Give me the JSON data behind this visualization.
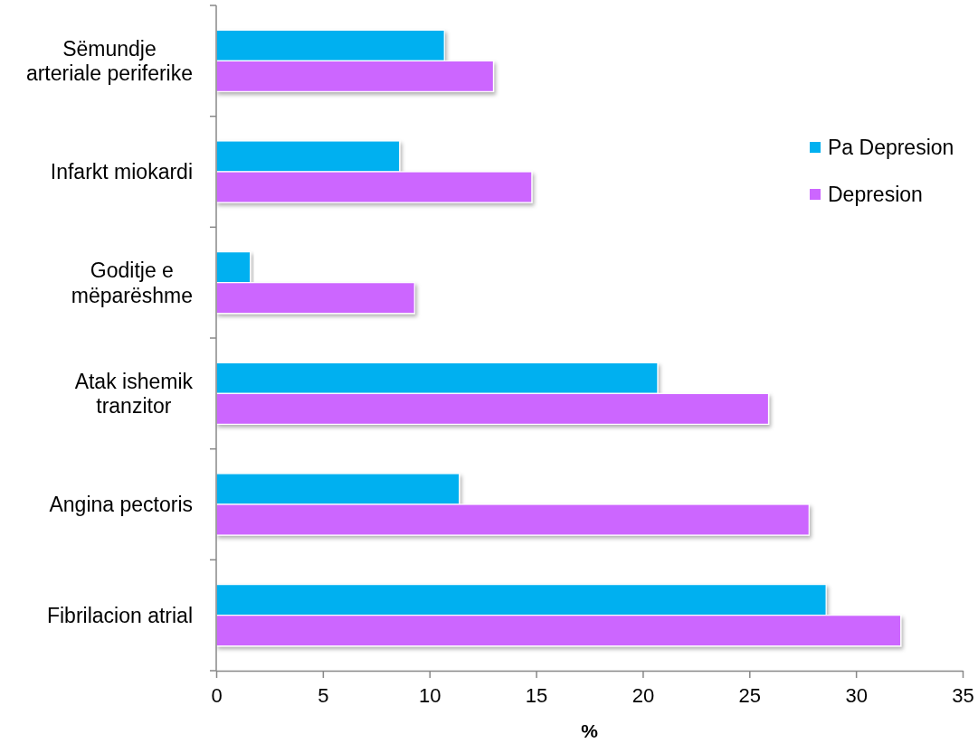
{
  "chart_data": {
    "type": "bar",
    "orientation": "horizontal",
    "xlabel": "%",
    "categories": [
      "Sëmundje arteriale periferike",
      "Infarkt miokardi",
      "Goditje e mëparëshme",
      "Atak ishemik tranzitor",
      "Angina pectoris",
      "Fibrilacion atrial"
    ],
    "series": [
      {
        "name": "Pa Depresion",
        "color": "#00b0f0",
        "values": [
          10.7,
          8.6,
          1.6,
          20.7,
          11.4,
          28.6
        ]
      },
      {
        "name": "Depresion",
        "color": "#cc66ff",
        "values": [
          13.0,
          14.8,
          9.3,
          25.9,
          27.8,
          32.1
        ]
      }
    ],
    "xlim": [
      0,
      35
    ],
    "xticks": [
      0,
      5,
      10,
      15,
      20,
      25,
      30,
      35
    ],
    "legend": "top right"
  }
}
